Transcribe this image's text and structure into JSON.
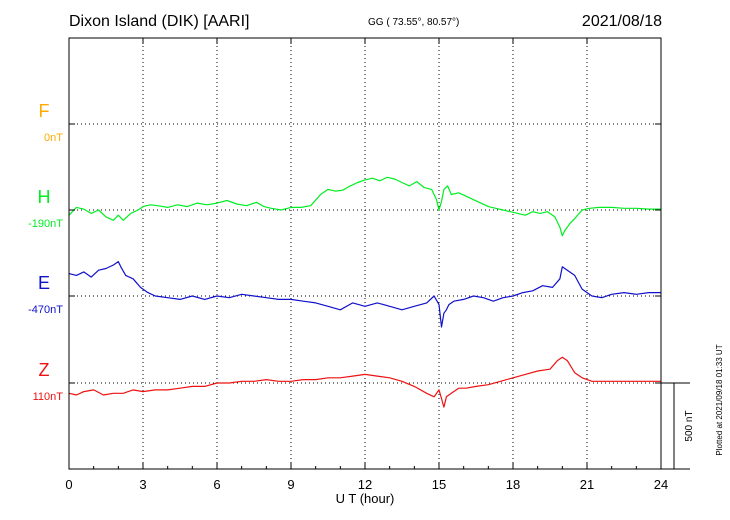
{
  "header": {
    "station": "Dixon Island (DIK)  [AARI]",
    "coords": "GG ( 73.55°,  80.57°)",
    "date": "2021/08/18"
  },
  "footer": {
    "credit": "Plotted at 2021/09/18 01:33 UT"
  },
  "scale_bar": {
    "label": "500 nT",
    "value_nT": 500
  },
  "colors": {
    "F": "#ffaa00",
    "H": "#00ee22",
    "E": "#1010cc",
    "Z": "#ee1111"
  },
  "chart_data": {
    "type": "line",
    "title": "Dixon Island (DIK)  [AARI]",
    "xlabel": "U T (hour)",
    "ylabel": "",
    "xlim": [
      0,
      24
    ],
    "x_ticks": [
      "0",
      "3",
      "6",
      "9",
      "12",
      "15",
      "18",
      "21",
      "24"
    ],
    "grid": true,
    "y_units": "nT",
    "series": [
      {
        "name": "F",
        "baseline_label": "0nT",
        "x": [],
        "y": []
      },
      {
        "name": "H",
        "baseline_label": "-190nT",
        "x": [
          0,
          0.3,
          0.6,
          0.9,
          1.2,
          1.5,
          1.8,
          2.0,
          2.2,
          2.5,
          2.8,
          3.0,
          3.3,
          3.6,
          4.0,
          4.4,
          4.8,
          5.2,
          5.6,
          6.0,
          6.4,
          6.8,
          7.2,
          7.6,
          7.9,
          8.2,
          8.6,
          9.0,
          9.4,
          9.8,
          10.2,
          10.5,
          10.8,
          11.1,
          11.4,
          11.7,
          12.0,
          12.3,
          12.6,
          12.9,
          13.2,
          13.5,
          13.8,
          14.1,
          14.4,
          14.7,
          14.9,
          15.0,
          15.1,
          15.2,
          15.35,
          15.5,
          15.8,
          16.1,
          16.4,
          16.7,
          17.0,
          17.3,
          17.6,
          17.9,
          18.2,
          18.5,
          18.8,
          19.1,
          19.4,
          19.7,
          19.9,
          20.0,
          20.1,
          20.3,
          20.5,
          20.8,
          21.1,
          21.5,
          22.0,
          22.5,
          23.0,
          23.5,
          24.0
        ],
        "y": [
          -30,
          15,
          5,
          -20,
          0,
          -40,
          -60,
          -30,
          -60,
          -20,
          0,
          20,
          30,
          25,
          15,
          30,
          20,
          40,
          30,
          40,
          55,
          35,
          25,
          45,
          20,
          10,
          0,
          15,
          15,
          25,
          90,
          120,
          110,
          115,
          140,
          160,
          175,
          185,
          170,
          190,
          180,
          160,
          140,
          165,
          130,
          120,
          60,
          0,
          50,
          120,
          140,
          90,
          100,
          80,
          60,
          40,
          20,
          10,
          0,
          -10,
          -20,
          -30,
          -10,
          -20,
          -10,
          -40,
          -100,
          -150,
          -120,
          -80,
          -50,
          0,
          10,
          15,
          15,
          10,
          10,
          5,
          5
        ]
      },
      {
        "name": "E",
        "baseline_label": "-470nT",
        "x": [
          0,
          0.3,
          0.6,
          0.9,
          1.2,
          1.5,
          1.8,
          2.0,
          2.1,
          2.3,
          2.6,
          2.9,
          3.2,
          3.5,
          4.0,
          4.5,
          5.0,
          5.5,
          6.0,
          6.5,
          7.0,
          7.5,
          8.0,
          8.5,
          9.0,
          9.5,
          10.0,
          10.5,
          11.0,
          11.5,
          12.0,
          12.5,
          13.0,
          13.5,
          14.0,
          14.5,
          14.8,
          15.0,
          15.1,
          15.2,
          15.3,
          15.4,
          15.6,
          16.0,
          16.4,
          16.8,
          17.2,
          17.6,
          18.0,
          18.4,
          18.8,
          19.2,
          19.6,
          19.9,
          20.0,
          20.2,
          20.5,
          20.8,
          21.2,
          21.6,
          22.0,
          22.5,
          23.0,
          23.5,
          24.0
        ],
        "y": [
          130,
          120,
          140,
          110,
          150,
          160,
          180,
          200,
          170,
          120,
          100,
          50,
          20,
          0,
          -10,
          -20,
          0,
          -20,
          0,
          -10,
          10,
          0,
          -10,
          -20,
          -20,
          -30,
          -40,
          -60,
          -80,
          -40,
          -60,
          -40,
          -60,
          -80,
          -60,
          -40,
          0,
          -50,
          -180,
          -100,
          -80,
          -50,
          -30,
          -20,
          0,
          -10,
          -30,
          -10,
          0,
          20,
          30,
          60,
          50,
          100,
          170,
          150,
          120,
          40,
          0,
          -10,
          10,
          20,
          10,
          20,
          20
        ]
      },
      {
        "name": "Z",
        "baseline_label": "110nT",
        "x": [
          0,
          0.3,
          0.6,
          1.0,
          1.4,
          1.8,
          2.2,
          2.6,
          3.0,
          3.5,
          4.0,
          4.5,
          5.0,
          5.5,
          6.0,
          6.5,
          7.0,
          7.5,
          8.0,
          8.5,
          9.0,
          9.5,
          10.0,
          10.5,
          11.0,
          11.5,
          12.0,
          12.5,
          13.0,
          13.5,
          14.0,
          14.5,
          14.8,
          15.0,
          15.1,
          15.2,
          15.3,
          15.5,
          15.8,
          16.1,
          16.5,
          17.0,
          17.5,
          18.0,
          18.5,
          19.0,
          19.5,
          19.8,
          20.0,
          20.2,
          20.5,
          20.8,
          21.2,
          21.6,
          22.0,
          22.5,
          23.0,
          23.5,
          24.0
        ],
        "y": [
          -60,
          -70,
          -50,
          -40,
          -70,
          -60,
          -60,
          -40,
          -50,
          -40,
          -40,
          -30,
          -20,
          -20,
          0,
          0,
          10,
          10,
          20,
          10,
          10,
          20,
          20,
          30,
          30,
          40,
          50,
          40,
          30,
          10,
          -20,
          -60,
          -80,
          -40,
          -90,
          -140,
          -80,
          -60,
          -30,
          -30,
          -20,
          -10,
          10,
          30,
          50,
          70,
          80,
          130,
          150,
          130,
          60,
          30,
          10,
          10,
          10,
          10,
          10,
          10,
          10
        ]
      }
    ]
  }
}
